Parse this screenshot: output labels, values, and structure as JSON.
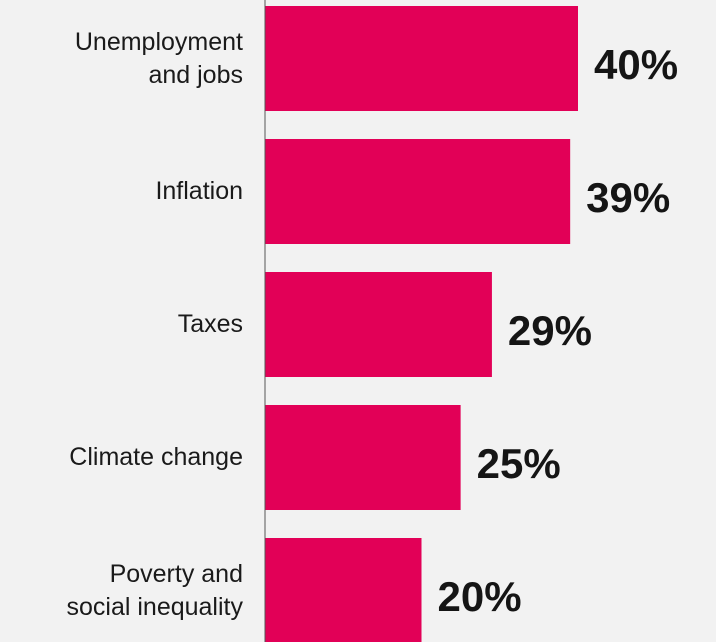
{
  "chart_data": {
    "type": "bar",
    "orientation": "horizontal",
    "categories": [
      "Unemployment\nand jobs",
      "Inflation",
      "Taxes",
      "Climate change",
      "Poverty and\nsocial inequality"
    ],
    "values": [
      40,
      39,
      29,
      25,
      20
    ],
    "value_labels": [
      "40%",
      "39%",
      "29%",
      "25%",
      "20%"
    ],
    "unit": "%",
    "xlim": [
      0,
      40
    ],
    "grid": false,
    "legend": "none",
    "bar_color": "#e20057",
    "background_color": "#f2f2f2",
    "axis_line_color": "#555555"
  }
}
